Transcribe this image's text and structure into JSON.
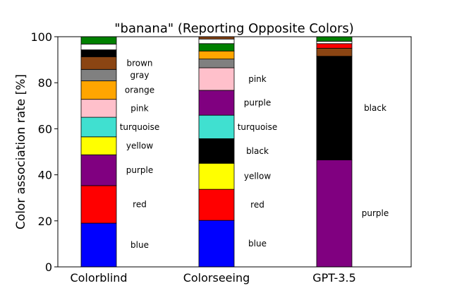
{
  "chart_data": {
    "type": "bar",
    "stacked": true,
    "title": "\"banana\" (Reporting Opposite Colors)",
    "xlabel": "",
    "ylabel": "Color association rate [%]",
    "ylim": [
      0,
      100
    ],
    "yticks": [
      "0",
      "20",
      "40",
      "60",
      "80",
      "100"
    ],
    "categories": [
      "Colorblind",
      "Colorseeing",
      "GPT-3.5"
    ],
    "grid": false,
    "stacks": [
      {
        "category": "Colorblind",
        "segments": [
          {
            "color_name": "blue",
            "value": 19.0,
            "fill": "#0000ff",
            "label": "blue"
          },
          {
            "color_name": "red",
            "value": 16.3,
            "fill": "#ff0000",
            "label": "red"
          },
          {
            "color_name": "purple",
            "value": 13.4,
            "fill": "#800080",
            "label": "purple"
          },
          {
            "color_name": "yellow",
            "value": 7.8,
            "fill": "#ffff00",
            "label": "yellow"
          },
          {
            "color_name": "turquoise",
            "value": 8.5,
            "fill": "#40e0d0",
            "label": "turquoise"
          },
          {
            "color_name": "pink",
            "value": 7.8,
            "fill": "#ffc0cb",
            "label": "pink"
          },
          {
            "color_name": "orange",
            "value": 8.0,
            "fill": "#ffa500",
            "label": "orange"
          },
          {
            "color_name": "gray",
            "value": 5.0,
            "fill": "#808080",
            "label": "gray"
          },
          {
            "color_name": "brown",
            "value": 5.5,
            "fill": "#8b4513",
            "label": "brown"
          },
          {
            "color_name": "black",
            "value": 3.0,
            "fill": "#000000",
            "label": ""
          },
          {
            "color_name": "white",
            "value": 2.5,
            "fill": "#ffffff",
            "label": ""
          },
          {
            "color_name": "green",
            "value": 3.2,
            "fill": "#008000",
            "label": ""
          }
        ]
      },
      {
        "category": "Colorseeing",
        "segments": [
          {
            "color_name": "blue",
            "value": 20.2,
            "fill": "#0000ff",
            "label": "blue"
          },
          {
            "color_name": "red",
            "value": 13.5,
            "fill": "#ff0000",
            "label": "red"
          },
          {
            "color_name": "yellow",
            "value": 11.3,
            "fill": "#ffff00",
            "label": "yellow"
          },
          {
            "color_name": "black",
            "value": 10.7,
            "fill": "#000000",
            "label": "black"
          },
          {
            "color_name": "turquoise",
            "value": 10.2,
            "fill": "#40e0d0",
            "label": "turquoise"
          },
          {
            "color_name": "purple",
            "value": 10.8,
            "fill": "#800080",
            "label": "purple"
          },
          {
            "color_name": "pink",
            "value": 9.8,
            "fill": "#ffc0cb",
            "label": "pink"
          },
          {
            "color_name": "gray",
            "value": 3.8,
            "fill": "#808080",
            "label": ""
          },
          {
            "color_name": "orange",
            "value": 3.5,
            "fill": "#ffa500",
            "label": ""
          },
          {
            "color_name": "green",
            "value": 3.2,
            "fill": "#008000",
            "label": ""
          },
          {
            "color_name": "white",
            "value": 2.0,
            "fill": "#ffffff",
            "label": ""
          },
          {
            "color_name": "brown",
            "value": 1.0,
            "fill": "#8b4513",
            "label": ""
          }
        ]
      },
      {
        "category": "GPT-3.5",
        "segments": [
          {
            "color_name": "purple",
            "value": 46.5,
            "fill": "#800080",
            "label": "purple"
          },
          {
            "color_name": "black",
            "value": 45.0,
            "fill": "#000000",
            "label": "black"
          },
          {
            "color_name": "brown",
            "value": 3.5,
            "fill": "#8b4513",
            "label": ""
          },
          {
            "color_name": "red",
            "value": 2.0,
            "fill": "#ff0000",
            "label": ""
          },
          {
            "color_name": "white",
            "value": 1.0,
            "fill": "#ffffff",
            "label": ""
          },
          {
            "color_name": "green",
            "value": 2.0,
            "fill": "#008000",
            "label": ""
          }
        ]
      }
    ]
  }
}
